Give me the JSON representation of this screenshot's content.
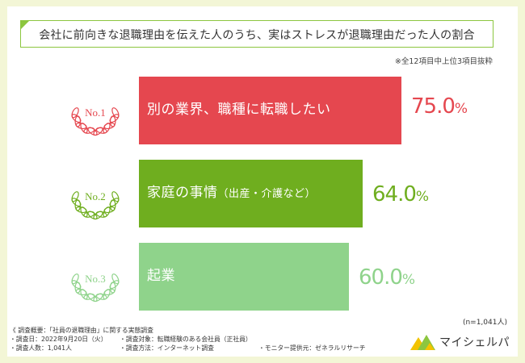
{
  "title": "会社に前向きな退職理由を伝えた人のうち、実はストレスが退職理由だった人の割合",
  "note": "※全12項目中上位3項目抜粋",
  "sample_note": "(n=1,041人)",
  "colors": {
    "rank1": "#e5474f",
    "rank2": "#6fae1f",
    "rank3": "#8fd38b",
    "border": "#8cc63f",
    "bg": "#f3f6d6"
  },
  "chart_data": {
    "type": "bar",
    "orientation": "horizontal",
    "title": "会社に前向きな退職理由を伝えた人のうち、実はストレスが退職理由だった人の割合",
    "categories": [
      "別の業界、職種に転職したい",
      "家庭の事情（出産・介護など）",
      "起業"
    ],
    "values": [
      75.0,
      64.0,
      60.0
    ],
    "value_labels": [
      "75.0",
      "64.0",
      "60.0"
    ],
    "unit": "%",
    "ranks": [
      "No.1",
      "No.2",
      "No.3"
    ],
    "xlim": [
      0,
      100
    ]
  },
  "bars": [
    {
      "rank": "No.1",
      "label_main": "別の業界、職種に転職したい",
      "label_sub": "",
      "value_main": "75.0",
      "unit": "%"
    },
    {
      "rank": "No.2",
      "label_main": "家庭の事情",
      "label_sub": "（出産・介護など）",
      "value_main": "64.0",
      "unit": "%"
    },
    {
      "rank": "No.3",
      "label_main": "起業",
      "label_sub": "",
      "value_main": "60.0",
      "unit": "%"
    }
  ],
  "survey": {
    "heading": "《 調査概要：「社員の退職理由」に関する実態調査",
    "date": "・調査日：2022年9月20日（火）",
    "target": "・調査対象：転職経験のある会社員（正社員）",
    "count": "・調査人数：1,041人",
    "method": "・調査方法：インターネット調査",
    "provider": "・モニター提供元：ゼネラルリサーチ"
  },
  "logo": {
    "text": "マイシェルパ",
    "icon": "mountain-logo-icon"
  }
}
